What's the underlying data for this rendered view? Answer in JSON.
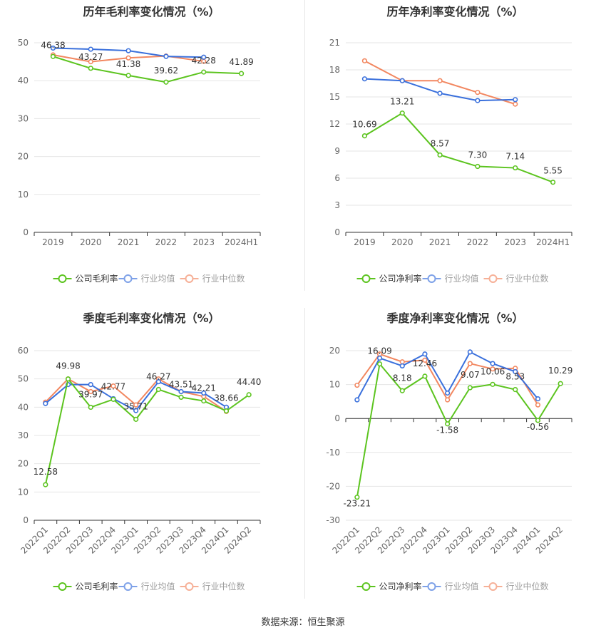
{
  "source_label": "数据来源：恒生聚源",
  "colors": {
    "company": "#5cc41f",
    "avg": "#3a70dc",
    "median": "#f28760",
    "grid": "#e6e6e6",
    "axis": "#333333"
  },
  "chart_data": [
    {
      "type": "line",
      "title": "历年毛利率变化情况（%）",
      "categories": [
        "2019",
        "2020",
        "2021",
        "2022",
        "2023",
        "2024H1"
      ],
      "ylim": [
        0,
        50
      ],
      "yticks": [
        0,
        10,
        20,
        30,
        40,
        50
      ],
      "grid": true,
      "legend": "bottom",
      "series": [
        {
          "name": "公司毛利率",
          "key": "company",
          "values": [
            46.38,
            43.27,
            41.38,
            39.62,
            42.28,
            41.89
          ],
          "labels": [
            "46.38",
            "43.27",
            "41.38",
            "39.62",
            "42.28",
            "41.89"
          ]
        },
        {
          "name": "行业均值",
          "key": "avg",
          "values": [
            48.6,
            48.3,
            47.9,
            46.4,
            46.2,
            null
          ]
        },
        {
          "name": "行业中位数",
          "key": "median",
          "values": [
            46.8,
            45.0,
            46.0,
            46.5,
            45.1,
            null
          ]
        }
      ]
    },
    {
      "type": "line",
      "title": "历年净利率变化情况（%）",
      "categories": [
        "2019",
        "2020",
        "2021",
        "2022",
        "2023",
        "2024H1"
      ],
      "ylim": [
        0,
        21
      ],
      "yticks": [
        0,
        3,
        6,
        9,
        12,
        15,
        18,
        21
      ],
      "grid": true,
      "legend": "bottom",
      "series": [
        {
          "name": "公司净利率",
          "key": "company",
          "values": [
            10.69,
            13.21,
            8.57,
            7.3,
            7.14,
            5.55
          ],
          "labels": [
            "10.69",
            "13.21",
            "8.57",
            "7.30",
            "7.14",
            "5.55"
          ]
        },
        {
          "name": "行业均值",
          "key": "avg",
          "values": [
            17.0,
            16.8,
            15.4,
            14.6,
            14.7,
            null
          ]
        },
        {
          "name": "行业中位数",
          "key": "median",
          "values": [
            19.0,
            16.8,
            16.8,
            15.5,
            14.2,
            null
          ]
        }
      ]
    },
    {
      "type": "line",
      "title": "季度毛利率变化情况（%）",
      "categories": [
        "2022Q1",
        "2022Q2",
        "2022Q3",
        "2022Q4",
        "2023Q1",
        "2023Q2",
        "2023Q3",
        "2023Q4",
        "2024Q1",
        "2024Q2"
      ],
      "ylim": [
        0,
        60
      ],
      "yticks": [
        0,
        10,
        20,
        30,
        40,
        50,
        60
      ],
      "grid": true,
      "legend": "bottom",
      "series": [
        {
          "name": "公司毛利率",
          "key": "company",
          "values": [
            12.58,
            49.98,
            39.97,
            42.77,
            35.71,
            46.27,
            43.51,
            42.21,
            38.66,
            44.4
          ],
          "labels": [
            "12.58",
            "49.98",
            "39.97",
            "42.77",
            "35.71",
            "46.27",
            "43.51",
            "42.21",
            "38.66",
            "44.40"
          ]
        },
        {
          "name": "行业均值",
          "key": "avg",
          "values": [
            41.3,
            48.0,
            48.0,
            43.0,
            38.8,
            49.0,
            45.5,
            45.0,
            40.0,
            null
          ]
        },
        {
          "name": "行业中位数",
          "key": "median",
          "values": [
            41.8,
            50.0,
            45.5,
            47.5,
            40.8,
            50.0,
            45.5,
            43.8,
            38.5,
            null
          ]
        }
      ]
    },
    {
      "type": "line",
      "title": "季度净利率变化情况（%）",
      "categories": [
        "2022Q1",
        "2022Q2",
        "2022Q3",
        "2022Q4",
        "2023Q1",
        "2023Q2",
        "2023Q3",
        "2023Q4",
        "2024Q1",
        "2024Q2"
      ],
      "ylim": [
        -30,
        20
      ],
      "yticks": [
        -30,
        -20,
        -10,
        0,
        10,
        20
      ],
      "grid": true,
      "legend": "bottom",
      "series": [
        {
          "name": "公司净利率",
          "key": "company",
          "values": [
            -23.21,
            16.09,
            8.18,
            12.46,
            -1.58,
            9.07,
            10.06,
            8.53,
            -0.56,
            10.29
          ],
          "labels": [
            "-23.21",
            "16.09",
            "8.18",
            "12.46",
            "-1.58",
            "9.07",
            "10.06",
            "8.53",
            "-0.56",
            "10.29"
          ]
        },
        {
          "name": "行业均值",
          "key": "avg",
          "values": [
            5.5,
            17.8,
            15.5,
            19.0,
            7.5,
            19.6,
            16.2,
            13.8,
            5.8,
            null
          ]
        },
        {
          "name": "行业中位数",
          "key": "median",
          "values": [
            9.8,
            19.0,
            16.7,
            17.2,
            5.5,
            16.2,
            14.6,
            14.8,
            4.0,
            null
          ]
        }
      ]
    }
  ]
}
